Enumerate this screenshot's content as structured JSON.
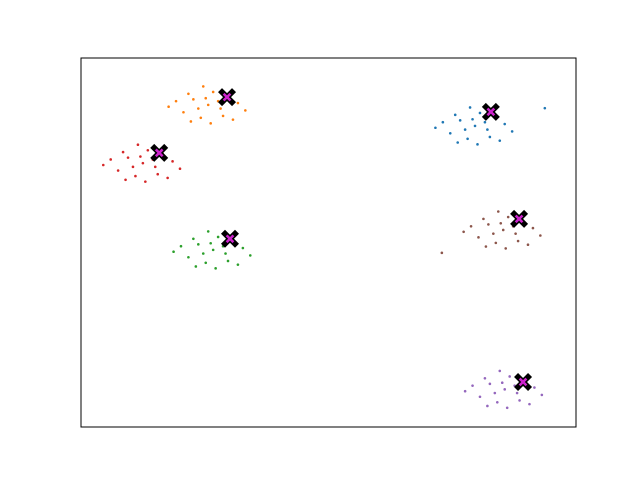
{
  "chart_data": {
    "type": "scatter",
    "xlim": [
      0,
      100
    ],
    "ylim": [
      0,
      100
    ],
    "series": [
      {
        "color": "#1f77b4",
        "x": [
          79.6,
          76.6,
          82.1,
          74.6,
          83.6,
          78.1,
          85.6,
          73.1,
          80.6,
          77.6,
          82.6,
          75.6,
          87.1,
          71.6,
          80.1,
          78.6,
          84.6,
          76.1,
          81.6,
          79.1,
          93.7
        ],
        "y": [
          81.6,
          83.1,
          80.6,
          79.6,
          84.1,
          78.1,
          82.1,
          82.6,
          85.1,
          80.6,
          78.6,
          84.6,
          80.1,
          81.1,
          76.6,
          86.6,
          77.6,
          77.1,
          82.6,
          83.4,
          86.4
        ]
      },
      {
        "color": "#ff7f0e",
        "x": [
          25.7,
          22.7,
          28.2,
          20.7,
          29.7,
          24.2,
          31.7,
          19.2,
          26.7,
          23.7,
          28.7,
          21.7,
          33.2,
          17.7,
          26.2,
          24.7,
          30.7,
          22.2,
          27.7,
          25.2
        ],
        "y": [
          87.3,
          88.8,
          86.3,
          85.3,
          89.8,
          83.8,
          87.8,
          88.3,
          90.8,
          86.3,
          84.3,
          90.3,
          85.8,
          86.8,
          82.3,
          92.3,
          83.3,
          82.8,
          88.3,
          89.1
        ]
      },
      {
        "color": "#d62728",
        "x": [
          12.5,
          9.5,
          15.0,
          7.5,
          16.5,
          11.0,
          18.5,
          6.0,
          13.5,
          10.5,
          15.5,
          8.5,
          20.0,
          4.5,
          13.0,
          11.5,
          17.5,
          9.0,
          14.5,
          12.0
        ],
        "y": [
          71.5,
          73.0,
          70.5,
          69.5,
          74.0,
          68.0,
          72.0,
          72.5,
          75.0,
          70.5,
          68.5,
          74.5,
          70.0,
          71.0,
          66.5,
          76.5,
          67.5,
          67.0,
          72.5,
          73.3
        ]
      },
      {
        "color": "#2ca02c",
        "x": [
          26.7,
          23.7,
          29.2,
          21.7,
          30.7,
          25.2,
          32.7,
          20.2,
          27.7,
          24.7,
          29.7,
          22.7,
          34.2,
          18.7,
          27.2,
          25.7,
          31.7,
          23.2,
          28.7,
          26.2
        ],
        "y": [
          48.0,
          49.5,
          47.0,
          46.0,
          50.5,
          44.5,
          48.5,
          49.0,
          51.5,
          47.0,
          45.0,
          51.0,
          46.5,
          47.5,
          43.0,
          53.0,
          44.0,
          43.5,
          49.0,
          49.8
        ]
      },
      {
        "color": "#8c564b",
        "x": [
          85.3,
          82.3,
          87.8,
          80.3,
          89.3,
          83.8,
          91.3,
          78.8,
          86.3,
          83.3,
          88.3,
          81.3,
          92.8,
          77.3,
          85.8,
          84.3,
          90.3,
          81.8,
          87.3,
          84.8,
          72.9
        ],
        "y": [
          53.4,
          54.9,
          52.4,
          51.4,
          55.9,
          49.9,
          53.9,
          54.4,
          56.9,
          52.4,
          50.4,
          56.4,
          51.9,
          52.9,
          48.4,
          58.4,
          49.4,
          48.9,
          54.4,
          55.2,
          47.2
        ]
      },
      {
        "color": "#9467bd",
        "x": [
          85.6,
          82.6,
          88.1,
          80.6,
          89.6,
          84.1,
          91.6,
          79.1,
          86.6,
          83.6,
          88.6,
          81.6,
          93.1,
          77.6,
          86.1,
          84.6,
          90.6,
          82.1,
          87.6,
          85.1
        ],
        "y": [
          10.2,
          11.7,
          9.2,
          8.2,
          12.7,
          6.7,
          10.7,
          11.2,
          13.7,
          9.2,
          7.2,
          13.2,
          8.7,
          9.7,
          5.2,
          15.2,
          6.2,
          5.7,
          11.2,
          12.0
        ]
      }
    ],
    "centers": {
      "color": "#000000",
      "inner_color": "#cc22cc",
      "x": [
        82.8,
        29.5,
        15.8,
        30.1,
        88.5,
        89.3
      ],
      "y": [
        85.4,
        89.4,
        74.3,
        51.0,
        56.4,
        12.2
      ]
    }
  }
}
